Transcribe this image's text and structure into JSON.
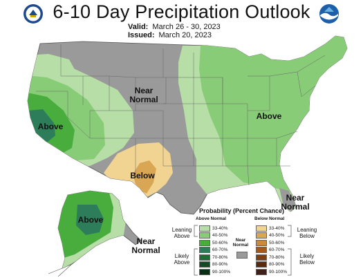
{
  "header": {
    "title": "6-10 Day Precipitation Outlook",
    "valid_label": "Valid:",
    "valid_value": "March 26 - 30, 2023",
    "issued_label": "Issued:",
    "issued_value": "March 20, 2023",
    "left_logo": "doc-seal-icon",
    "right_logo": "noaa-logo-icon"
  },
  "map_labels": {
    "near_normal_central": "Near\nNormal",
    "above_west": "Above",
    "above_east": "Above",
    "below_southwest": "Below",
    "above_alaska": "Above",
    "near_normal_alaska": "Near\nNormal",
    "near_normal_florida": "Near\nNormal"
  },
  "colors": {
    "above_33_40": "#b7dea7",
    "above_40_50": "#88cc78",
    "above_50_60": "#48ad3d",
    "above_60_70": "#2d7d5b",
    "above_70_80": "#1f6b31",
    "above_80_90": "#134a24",
    "above_90_100": "#0a2f14",
    "below_33_40": "#f2d492",
    "below_40_50": "#d9a653",
    "below_50_60": "#c98a3c",
    "below_60_70": "#a2591e",
    "below_70_80": "#7e3f12",
    "below_80_90": "#5a2a0c",
    "below_90_100": "#3e1f1a",
    "near_normal": "#9a9a9a"
  },
  "legend": {
    "title": "Probability (Percent Chance)",
    "above_header": "Above Normal",
    "below_header": "Below Normal",
    "near_normal_label": "Near\nNormal",
    "leaning_above": "Leaning\nAbove",
    "likely_above": "Likely\nAbove",
    "leaning_below": "Leaning\nBelow",
    "likely_below": "Likely\nBelow",
    "above_ranges": [
      "33-40%",
      "40-50%",
      "50-60%",
      "60-70%",
      "70-80%",
      "80-90%",
      "90-100%"
    ],
    "below_ranges": [
      "33-40%",
      "40-50%",
      "50-60%",
      "60-70%",
      "70-80%",
      "80-90%",
      "90-100%"
    ]
  }
}
